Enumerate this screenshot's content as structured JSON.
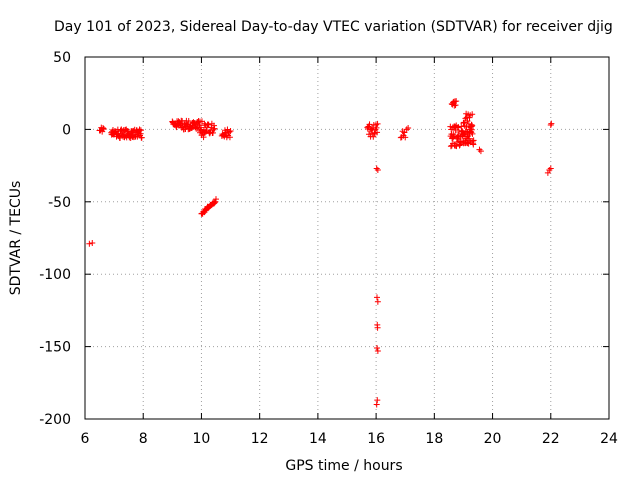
{
  "chart_data": {
    "type": "scatter",
    "title": "Day 101 of 2023, Sidereal Day-to-day VTEC variation (SDTVAR) for receiver djig",
    "xlabel": "GPS time / hours",
    "ylabel": "SDTVAR / TECUs",
    "xlim": [
      6,
      24
    ],
    "ylim": [
      -200,
      50
    ],
    "xticks": [
      6,
      8,
      10,
      12,
      14,
      16,
      18,
      20,
      22,
      24
    ],
    "yticks": [
      50,
      0,
      -50,
      -100,
      -150,
      -200
    ],
    "xtick_labels": [
      "6",
      "8",
      "10",
      "12",
      "14",
      "16",
      "18",
      "20",
      "22",
      "24"
    ],
    "ytick_labels": [
      "50",
      "0",
      "-50",
      "-100",
      "-150",
      "-200"
    ],
    "grid": true,
    "marker": "+",
    "color": "#ff0000",
    "series": [
      {
        "name": "SDTVAR",
        "clusters": [
          {
            "x_start": 6.15,
            "x_end": 6.25,
            "y_min": -79,
            "y_max": -77,
            "count": 2
          },
          {
            "x_start": 6.5,
            "x_end": 6.65,
            "y_min": -2,
            "y_max": 2,
            "count": 6
          },
          {
            "x_start": 6.9,
            "x_end": 7.95,
            "y_min": -6,
            "y_max": 0,
            "count": 70
          },
          {
            "x_start": 9.0,
            "x_end": 9.95,
            "y_min": 0,
            "y_max": 6,
            "count": 60
          },
          {
            "x_start": 9.95,
            "x_end": 10.1,
            "y_min": -6,
            "y_max": 6,
            "count": 12
          },
          {
            "x_start": 10.1,
            "x_end": 10.45,
            "y_min": -3,
            "y_max": 5,
            "count": 20
          },
          {
            "x_start": 10.7,
            "x_end": 11.0,
            "y_min": -6,
            "y_max": 0,
            "count": 15
          },
          {
            "x_start": 15.7,
            "x_end": 16.05,
            "y_min": -6,
            "y_max": 4,
            "count": 20
          },
          {
            "x_start": 16.85,
            "x_end": 17.0,
            "y_min": -7,
            "y_max": -1,
            "count": 6
          },
          {
            "x_start": 18.6,
            "x_end": 18.75,
            "y_min": 15,
            "y_max": 20,
            "count": 8
          },
          {
            "x_start": 18.55,
            "x_end": 19.35,
            "y_min": -12,
            "y_max": 3,
            "count": 80
          },
          {
            "x_start": 19.0,
            "x_end": 19.3,
            "y_min": 2,
            "y_max": 11,
            "count": 14
          }
        ],
        "trend": {
          "x_start": 10.0,
          "x_end": 10.5,
          "y_start": -58,
          "y_end": -49,
          "count": 25
        },
        "points": [
          {
            "x": 16.02,
            "y": -27
          },
          {
            "x": 16.06,
            "y": -28
          },
          {
            "x": 16.03,
            "y": -116
          },
          {
            "x": 16.06,
            "y": -119
          },
          {
            "x": 16.04,
            "y": -135
          },
          {
            "x": 16.05,
            "y": -137
          },
          {
            "x": 16.03,
            "y": -151
          },
          {
            "x": 16.06,
            "y": -153
          },
          {
            "x": 16.04,
            "y": -187
          },
          {
            "x": 16.02,
            "y": -190
          },
          {
            "x": 17.05,
            "y": 0
          },
          {
            "x": 17.1,
            "y": 1
          },
          {
            "x": 19.6,
            "y": -15
          },
          {
            "x": 19.55,
            "y": -14
          },
          {
            "x": 22.0,
            "y": 3
          },
          {
            "x": 22.02,
            "y": 4
          },
          {
            "x": 21.9,
            "y": -30
          },
          {
            "x": 21.95,
            "y": -28
          },
          {
            "x": 22.0,
            "y": -27
          }
        ]
      }
    ]
  }
}
